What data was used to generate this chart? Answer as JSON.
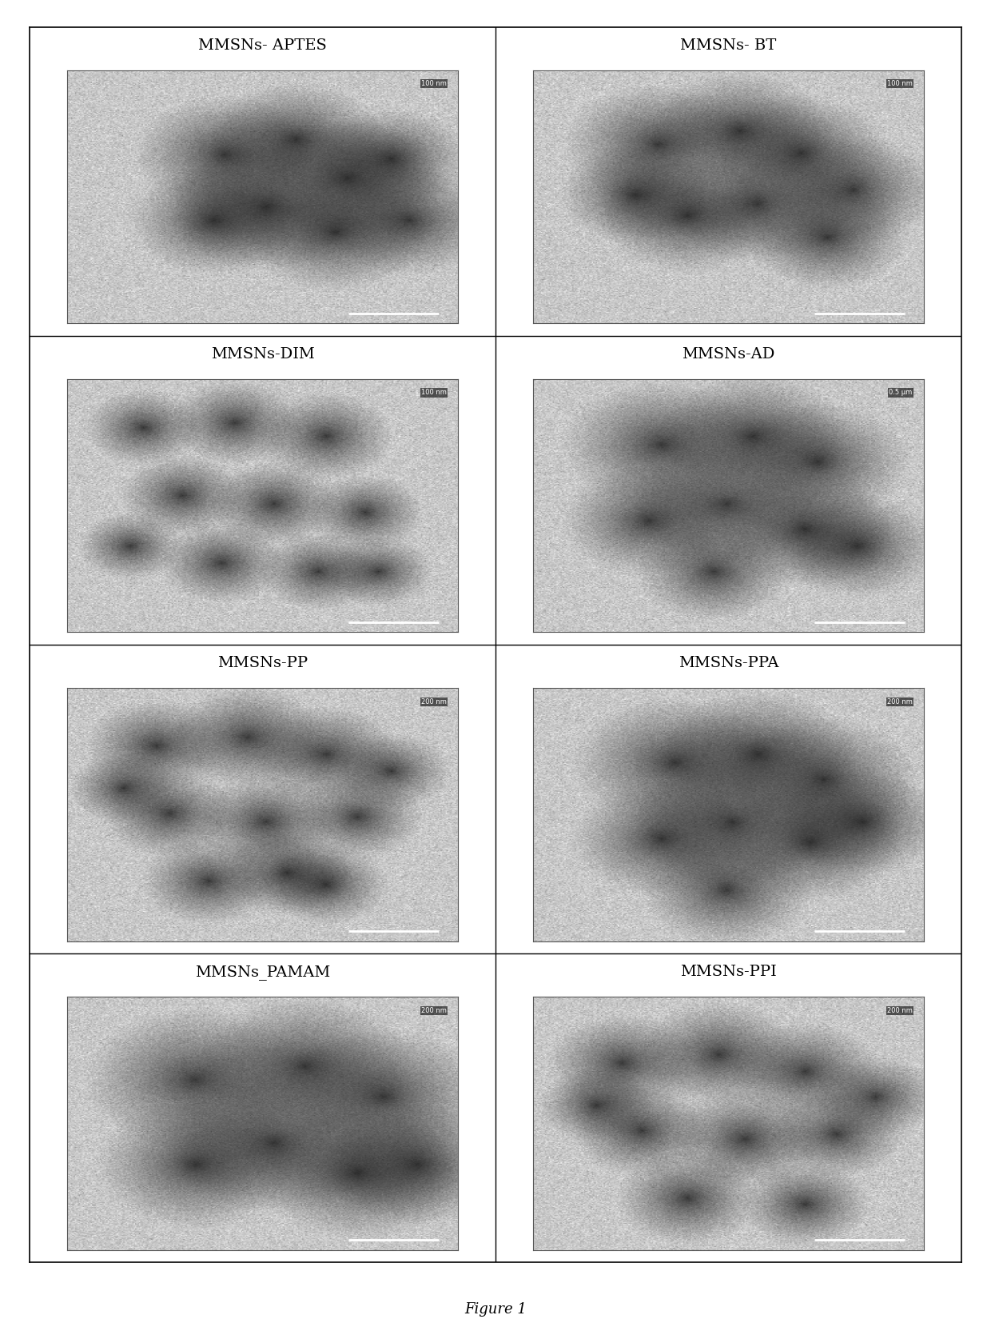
{
  "figure_caption": "Figure 1",
  "labels": [
    [
      "MMSNs- APTES",
      "MMSNs- BT"
    ],
    [
      "MMSNs-DIM",
      "MMSNs-AD"
    ],
    [
      "MMSNs-PP",
      "MMSNs-PPA"
    ],
    [
      "MMSNs_PAMAM",
      "MMSNs-PPI"
    ]
  ],
  "scale_bars": [
    [
      "100 nm",
      "100 nm"
    ],
    [
      "100 nm",
      "0.5 μm"
    ],
    [
      "200 nm",
      "200 nm"
    ],
    [
      "200 nm",
      "200 nm"
    ]
  ],
  "background_color": "#ffffff",
  "border_color": "#000000",
  "label_fontsize": 14,
  "caption_fontsize": 13,
  "scalebar_fontsize": 6,
  "rows": 4,
  "cols": 2,
  "figwidth": 12.4,
  "figheight": 16.79
}
